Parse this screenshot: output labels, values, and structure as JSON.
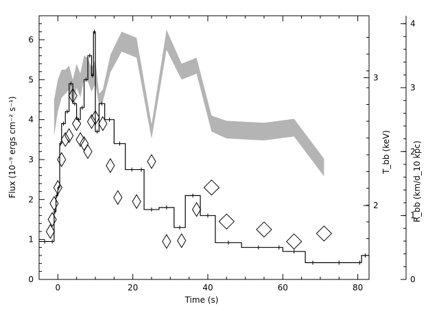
{
  "chart_data": {
    "type": "line",
    "xlabel": "Time (s)",
    "ylabel_left": "Flux (10⁻⁹ ergs cm⁻² s⁻¹)",
    "ylabel_right_inner": "T_bb (keV)",
    "ylabel_right_outer": "R_bb (km/d_10 kpc)",
    "xlim": [
      -5,
      83
    ],
    "ylim": [
      0,
      6.6
    ],
    "x_ticks": [
      0,
      20,
      40,
      60,
      80
    ],
    "y_ticks": [
      0,
      1,
      2,
      3,
      4,
      5,
      6
    ],
    "tbb_ticks": [
      {
        "label": "2",
        "flux_pos": 1.85
      },
      {
        "label": "3",
        "flux_pos": 5.05
      }
    ],
    "rbb_ticks": [
      {
        "label": "0",
        "flux_pos": 0.0
      },
      {
        "label": "1",
        "flux_pos": 1.6
      },
      {
        "label": "2",
        "flux_pos": 3.2
      },
      {
        "label": "3",
        "flux_pos": 4.8
      },
      {
        "label": "4",
        "flux_pos": 6.4
      }
    ],
    "series": [
      {
        "kind": "flux_step_histogram",
        "color": "#000000",
        "points": [
          [
            -5,
            0.95
          ],
          [
            -2,
            0.95
          ],
          [
            -1,
            1.7
          ],
          [
            -0.5,
            2.1
          ],
          [
            0,
            2.3
          ],
          [
            0.5,
            3.4
          ],
          [
            1,
            3.9
          ],
          [
            2,
            4.2
          ],
          [
            3,
            4.9
          ],
          [
            4,
            4.4
          ],
          [
            5,
            4.0
          ],
          [
            6,
            4.3
          ],
          [
            7,
            5.0
          ],
          [
            8,
            5.6
          ],
          [
            9,
            5.1
          ],
          [
            9.5,
            6.2
          ],
          [
            10,
            3.7
          ],
          [
            11,
            4.4
          ],
          [
            12.5,
            4.0
          ],
          [
            15,
            3.4
          ],
          [
            18,
            2.75
          ],
          [
            21.5,
            2.75
          ],
          [
            23,
            1.75
          ],
          [
            27,
            1.8
          ],
          [
            31,
            1.3
          ],
          [
            34,
            2.1
          ],
          [
            38,
            1.6
          ],
          [
            42,
            0.92
          ],
          [
            49,
            0.8
          ],
          [
            58,
            0.8
          ],
          [
            60,
            0.7
          ],
          [
            66,
            0.42
          ],
          [
            70,
            0.42
          ],
          [
            80,
            0.42
          ],
          [
            81,
            0.6
          ],
          [
            83,
            0.6
          ]
        ]
      },
      {
        "kind": "temperature_diamonds",
        "color": "#000000",
        "points": [
          [
            -2,
            1.2
          ],
          [
            -1.5,
            1.5
          ],
          [
            -1,
            1.9
          ],
          [
            0,
            2.3
          ],
          [
            1,
            3.0
          ],
          [
            2,
            3.5
          ],
          [
            3,
            3.6
          ],
          [
            4,
            4.6
          ],
          [
            5,
            3.9
          ],
          [
            6,
            3.5
          ],
          [
            7,
            3.4
          ],
          [
            8,
            3.2
          ],
          [
            9,
            3.95
          ],
          [
            10,
            4.05
          ],
          [
            12,
            3.9
          ],
          [
            14,
            2.85
          ],
          [
            16,
            2.05
          ],
          [
            21,
            1.95
          ],
          [
            25,
            2.95
          ],
          [
            29,
            0.95
          ],
          [
            33,
            0.97
          ],
          [
            37,
            1.75
          ],
          [
            41,
            2.3
          ],
          [
            45,
            1.45
          ],
          [
            55,
            1.25
          ],
          [
            63,
            0.95
          ],
          [
            71,
            1.15
          ]
        ]
      },
      {
        "kind": "radius_band",
        "color": "#b4b4b4",
        "points": [
          [
            -1,
            4.05
          ],
          [
            0,
            4.6
          ],
          [
            1,
            4.9
          ],
          [
            2,
            4.95
          ],
          [
            3,
            5.05
          ],
          [
            4,
            4.7
          ],
          [
            5,
            5.1
          ],
          [
            6,
            4.85
          ],
          [
            7,
            5.3
          ],
          [
            8,
            5.25
          ],
          [
            9,
            5.0
          ],
          [
            10,
            5.2
          ],
          [
            11,
            4.5
          ],
          [
            12,
            4.6
          ],
          [
            14,
            5.4
          ],
          [
            17,
            5.95
          ],
          [
            21,
            5.8
          ],
          [
            25,
            3.7
          ],
          [
            29,
            6.0
          ],
          [
            33,
            5.2
          ],
          [
            37,
            5.35
          ],
          [
            41,
            3.9
          ],
          [
            45,
            3.75
          ],
          [
            55,
            3.7
          ],
          [
            63,
            3.8
          ],
          [
            71,
            2.8
          ]
        ],
        "band_halfwidth": [
          0.45,
          0.4,
          0.35,
          0.3,
          0.3,
          0.3,
          0.3,
          0.3,
          0.3,
          0.3,
          0.3,
          0.3,
          0.15,
          0.15,
          0.22,
          0.25,
          0.25,
          0.18,
          0.25,
          0.2,
          0.2,
          0.2,
          0.22,
          0.22,
          0.22,
          0.22
        ]
      }
    ]
  }
}
